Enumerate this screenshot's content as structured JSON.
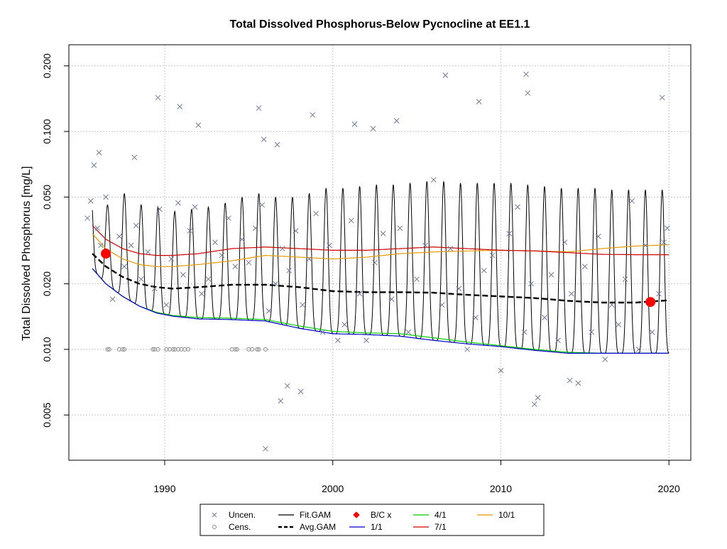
{
  "chart_data": {
    "type": "scatter",
    "title": "Total Dissolved Phosphorus-Below Pycnocline at EE1.1",
    "xlabel": "",
    "ylabel": "Total Dissolved Phosphorus [mg/L]",
    "x_scale": "linear",
    "y_scale": "log",
    "xlim": [
      1984.3,
      2021.3
    ],
    "ylim": [
      0.0031,
      0.25
    ],
    "x_ticks": [
      {
        "value": 1990,
        "label": "1990"
      },
      {
        "value": 2000,
        "label": "2000"
      },
      {
        "value": 2010,
        "label": "2010"
      },
      {
        "value": 2020,
        "label": "2020"
      }
    ],
    "y_ticks": [
      {
        "value": 0.005,
        "label": "0.005"
      },
      {
        "value": 0.01,
        "label": "0.010"
      },
      {
        "value": 0.02,
        "label": "0.020"
      },
      {
        "value": 0.05,
        "label": "0.050"
      },
      {
        "value": 0.1,
        "label": "0.100"
      },
      {
        "value": 0.2,
        "label": "0.200"
      }
    ],
    "grid": true,
    "legend_position": "bottom",
    "colors": {
      "uncensored": "#6e7b9a",
      "censored": "#8a8a8a",
      "fit_gam": "#000000",
      "avg_gam": "#000000",
      "bc": "#ff0000",
      "q1_1": "#0000cc",
      "q4_1": "#00cc00",
      "q7_1": "#cc0000",
      "q10_1": "#e69900",
      "grid": "#c8c8c8"
    },
    "legend": [
      {
        "label": "Uncen.",
        "symbol": "x",
        "color": "#6e7b9a"
      },
      {
        "label": "Fit.GAM",
        "symbol": "line",
        "color": "#000000"
      },
      {
        "label": "B/C x",
        "symbol": "diamond",
        "color": "#ff0000"
      },
      {
        "label": "4/1",
        "symbol": "line",
        "color": "#00cc00"
      },
      {
        "label": "10/1",
        "symbol": "line",
        "color": "#e69900"
      },
      {
        "label": "Cens.",
        "symbol": "circle",
        "color": "#8a8a8a"
      },
      {
        "label": "Avg.GAM",
        "symbol": "dashed",
        "color": "#000000"
      },
      {
        "label": "1/1",
        "symbol": "line",
        "color": "#0000cc"
      },
      {
        "label": "7/1",
        "symbol": "line",
        "color": "#cc0000"
      }
    ],
    "series": [
      {
        "name": "1/1",
        "type": "line",
        "x": [
          1985.7,
          1986.5,
          1987.5,
          1988.5,
          1989.5,
          1990.5,
          1992,
          1994,
          1996,
          1998,
          2000,
          2002,
          2004,
          2006,
          2008,
          2010,
          2012,
          2014,
          2016,
          2018,
          2020
        ],
        "values": [
          0.0235,
          0.02,
          0.0175,
          0.0158,
          0.0147,
          0.0142,
          0.0138,
          0.0137,
          0.0135,
          0.0125,
          0.0118,
          0.0117,
          0.0115,
          0.011,
          0.0106,
          0.0103,
          0.0099,
          0.0096,
          0.0096,
          0.0096,
          0.0096
        ]
      },
      {
        "name": "4/1",
        "type": "line",
        "x": [
          1985.7,
          1986.5,
          1987.5,
          1988.5,
          1989.5,
          1990.5,
          1992,
          1994,
          1996,
          1998,
          2000,
          2002,
          2004,
          2006,
          2008,
          2010,
          2012,
          2014,
          2016,
          2018,
          2020
        ],
        "values": [
          0.0235,
          0.02,
          0.0175,
          0.0158,
          0.0148,
          0.0143,
          0.014,
          0.0139,
          0.0137,
          0.0128,
          0.0121,
          0.0119,
          0.0118,
          0.0113,
          0.0108,
          0.0104,
          0.01,
          0.0097,
          0.0096,
          0.0096,
          0.0096
        ]
      },
      {
        "name": "7/1",
        "type": "line",
        "x": [
          1985.7,
          1986.5,
          1987.5,
          1988.5,
          1989.5,
          1990.5,
          1992,
          1994,
          1996,
          1998,
          2000,
          2002,
          2004,
          2006,
          2008,
          2010,
          2012,
          2014,
          2016,
          2018,
          2020
        ],
        "values": [
          0.037,
          0.032,
          0.029,
          0.0275,
          0.027,
          0.027,
          0.0275,
          0.029,
          0.0295,
          0.029,
          0.0285,
          0.0285,
          0.029,
          0.0295,
          0.029,
          0.0285,
          0.0283,
          0.0278,
          0.0273,
          0.0272,
          0.0272
        ]
      },
      {
        "name": "10/1",
        "type": "line",
        "x": [
          1985.7,
          1986.5,
          1987.5,
          1988.5,
          1989.5,
          1990.5,
          1992,
          1994,
          1996,
          1998,
          2000,
          2002,
          2004,
          2006,
          2008,
          2010,
          2012,
          2014,
          2016,
          2018,
          2020
        ],
        "values": [
          0.034,
          0.029,
          0.026,
          0.0245,
          0.024,
          0.024,
          0.0245,
          0.0255,
          0.027,
          0.0265,
          0.026,
          0.0265,
          0.0275,
          0.028,
          0.0283,
          0.0285,
          0.0283,
          0.028,
          0.029,
          0.0298,
          0.0302
        ]
      },
      {
        "name": "Avg.GAM",
        "type": "line",
        "x": [
          1985.7,
          1986.5,
          1987.5,
          1988.5,
          1989.5,
          1990.5,
          1992,
          1994,
          1996,
          1998,
          2000,
          2002,
          2004,
          2006,
          2008,
          2010,
          2012,
          2014,
          2016,
          2018,
          2020
        ],
        "values": [
          0.0275,
          0.024,
          0.0215,
          0.02,
          0.0193,
          0.019,
          0.0193,
          0.0198,
          0.0198,
          0.0193,
          0.0185,
          0.0183,
          0.0183,
          0.0182,
          0.0178,
          0.0175,
          0.0172,
          0.0167,
          0.0164,
          0.0164,
          0.0168
        ]
      },
      {
        "name": "B/C x",
        "type": "point",
        "x": [
          1986.5,
          2018.9
        ],
        "values": [
          0.0275,
          0.0165
        ]
      },
      {
        "name": "Fit.GAM",
        "type": "line",
        "peaks": [
          {
            "x": 1985.6,
            "y": 0.055
          },
          {
            "x": 1986.6,
            "y": 0.046
          },
          {
            "x": 1987.6,
            "y": 0.052
          },
          {
            "x": 1988.6,
            "y": 0.046
          },
          {
            "x": 1989.6,
            "y": 0.045
          },
          {
            "x": 1990.6,
            "y": 0.043
          },
          {
            "x": 1991.6,
            "y": 0.044
          },
          {
            "x": 1992.6,
            "y": 0.045
          },
          {
            "x": 1993.6,
            "y": 0.047
          },
          {
            "x": 1994.6,
            "y": 0.05
          },
          {
            "x": 1995.6,
            "y": 0.052
          },
          {
            "x": 1996.6,
            "y": 0.05
          },
          {
            "x": 1997.6,
            "y": 0.05
          },
          {
            "x": 1998.6,
            "y": 0.052
          },
          {
            "x": 1999.6,
            "y": 0.055
          },
          {
            "x": 2000.6,
            "y": 0.055
          },
          {
            "x": 2001.6,
            "y": 0.056
          },
          {
            "x": 2002.6,
            "y": 0.057
          },
          {
            "x": 2003.6,
            "y": 0.057
          },
          {
            "x": 2004.6,
            "y": 0.058
          },
          {
            "x": 2005.6,
            "y": 0.059
          },
          {
            "x": 2006.6,
            "y": 0.059
          },
          {
            "x": 2007.6,
            "y": 0.058
          },
          {
            "x": 2008.6,
            "y": 0.058
          },
          {
            "x": 2009.6,
            "y": 0.058
          },
          {
            "x": 2010.6,
            "y": 0.058
          },
          {
            "x": 2011.6,
            "y": 0.057
          },
          {
            "x": 2012.6,
            "y": 0.056
          },
          {
            "x": 2013.6,
            "y": 0.055
          },
          {
            "x": 2014.6,
            "y": 0.055
          },
          {
            "x": 2015.6,
            "y": 0.055
          },
          {
            "x": 2016.6,
            "y": 0.054
          },
          {
            "x": 2017.6,
            "y": 0.054
          },
          {
            "x": 2018.6,
            "y": 0.054
          },
          {
            "x": 2019.6,
            "y": 0.054
          }
        ],
        "troughs_follow": "1/1"
      },
      {
        "name": "Uncen.",
        "type": "scatter",
        "x": [
          1985.4,
          1985.6,
          1985.8,
          1986.0,
          1986.2,
          1986.5,
          1986.9,
          1987.3,
          1987.6,
          1988.0,
          1988.3,
          1988.6,
          1989.0,
          1989.4,
          1989.7,
          1990.1,
          1990.4,
          1990.8,
          1991.1,
          1991.5,
          1991.8,
          1992.2,
          1992.6,
          1993.0,
          1993.4,
          1993.8,
          1994.2,
          1994.6,
          1995.0,
          1995.4,
          1995.8,
          1996.2,
          1996.6,
          1997.0,
          1997.4,
          1997.8,
          1998.2,
          1998.6,
          1999.0,
          1999.4,
          1999.8,
          2000.3,
          2000.7,
          2001.1,
          2001.6,
          2002.0,
          2002.5,
          2003.0,
          2003.5,
          2004.0,
          2004.5,
          2005.0,
          2005.5,
          2006.0,
          2006.5,
          2007.0,
          2007.5,
          2008.0,
          2008.5,
          2009.0,
          2009.5,
          2010.0,
          2010.5,
          2011.0,
          2011.4,
          2011.8,
          2012.2,
          2012.6,
          2013.0,
          2013.4,
          2013.8,
          2014.2,
          2014.6,
          2015.0,
          2015.4,
          2015.8,
          2016.2,
          2016.6,
          2017.0,
          2017.4,
          2017.8,
          2018.2,
          2018.6,
          2019.0,
          2019.4,
          2019.7,
          2019.9,
          1989.6,
          1990.9,
          1995.6,
          1998.8,
          2006.7,
          2011.5,
          2011.6,
          2008.7,
          1996.7,
          1996.0,
          2001.3,
          2003.8,
          1986.1,
          1995.9,
          2019.6,
          1992.0,
          1988.2,
          1996.9,
          1997.3,
          1998.1,
          2002.4,
          2012.0,
          2014.1
        ],
        "values": [
          0.04,
          0.048,
          0.07,
          0.036,
          0.03,
          0.05,
          0.017,
          0.033,
          0.024,
          0.03,
          0.037,
          0.021,
          0.028,
          0.019,
          0.044,
          0.016,
          0.026,
          0.047,
          0.022,
          0.035,
          0.045,
          0.018,
          0.021,
          0.031,
          0.027,
          0.04,
          0.024,
          0.032,
          0.025,
          0.036,
          0.046,
          0.015,
          0.02,
          0.029,
          0.023,
          0.035,
          0.016,
          0.026,
          0.042,
          0.012,
          0.03,
          0.011,
          0.013,
          0.039,
          0.018,
          0.011,
          0.025,
          0.034,
          0.017,
          0.036,
          0.012,
          0.021,
          0.03,
          0.06,
          0.016,
          0.029,
          0.019,
          0.01,
          0.014,
          0.023,
          0.027,
          0.008,
          0.034,
          0.045,
          0.012,
          0.02,
          0.006,
          0.014,
          0.022,
          0.011,
          0.031,
          0.018,
          0.007,
          0.024,
          0.012,
          0.033,
          0.009,
          0.016,
          0.013,
          0.021,
          0.048,
          0.01,
          0.03,
          0.012,
          0.018,
          0.031,
          0.036,
          0.143,
          0.13,
          0.128,
          0.119,
          0.181,
          0.183,
          0.15,
          0.137,
          0.087,
          0.0035,
          0.108,
          0.112,
          0.08,
          0.092,
          0.143,
          0.107,
          0.076,
          0.0058,
          0.0068,
          0.0064,
          0.103,
          0.0056,
          0.0072
        ]
      },
      {
        "name": "Cens.",
        "type": "scatter",
        "x": [
          1986.6,
          1986.7,
          1987.3,
          1987.5,
          1987.6,
          1989.3,
          1989.4,
          1989.6,
          1990.1,
          1990.3,
          1990.5,
          1990.6,
          1990.8,
          1991.0,
          1991.2,
          1991.4,
          1994.0,
          1994.2,
          1994.3,
          1995.0,
          1995.2,
          1995.5,
          1995.6,
          1996.0
        ],
        "values": [
          0.01,
          0.01,
          0.01,
          0.01,
          0.01,
          0.01,
          0.01,
          0.01,
          0.01,
          0.01,
          0.01,
          0.01,
          0.01,
          0.01,
          0.01,
          0.01,
          0.01,
          0.01,
          0.01,
          0.01,
          0.01,
          0.01,
          0.01,
          0.01
        ]
      }
    ]
  }
}
